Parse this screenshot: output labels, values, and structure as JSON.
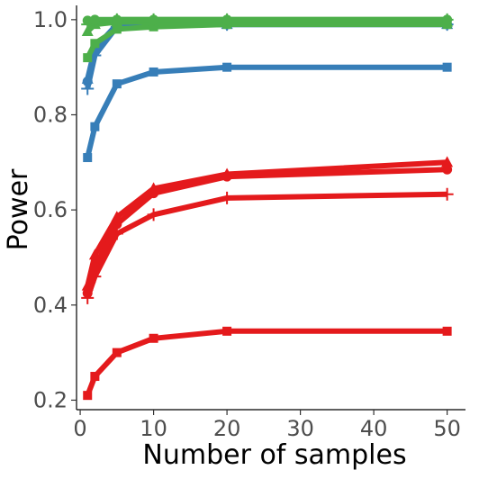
{
  "chart_data": {
    "type": "line",
    "title": "",
    "xlabel": "Number of samples",
    "ylabel": "Power",
    "x": [
      1,
      2,
      5,
      10,
      20,
      50
    ],
    "xlim": [
      -0.5,
      52.5
    ],
    "ylim": [
      0.18,
      1.03
    ],
    "xticks": [
      0,
      10,
      20,
      30,
      40,
      50
    ],
    "yticks": [
      0.2,
      0.4,
      0.6,
      0.8,
      1.0
    ],
    "ytick_labels": [
      "0.2",
      "0.4",
      "0.6",
      "0.8",
      "1.0"
    ],
    "grid": false,
    "legend": "none",
    "colors": {
      "red": "#e41a1c",
      "blue": "#377eb8",
      "green": "#4daf4a"
    },
    "series": [
      {
        "color": "red",
        "marker": "square",
        "values": [
          0.21,
          0.25,
          0.3,
          0.33,
          0.345,
          0.345
        ]
      },
      {
        "color": "red",
        "marker": "plus",
        "values": [
          0.415,
          0.46,
          0.55,
          0.59,
          0.625,
          0.633
        ]
      },
      {
        "color": "red",
        "marker": "circle",
        "values": [
          0.425,
          0.48,
          0.57,
          0.635,
          0.67,
          0.685
        ]
      },
      {
        "color": "red",
        "marker": "triangle",
        "values": [
          0.44,
          0.505,
          0.585,
          0.645,
          0.675,
          0.7
        ]
      },
      {
        "color": "blue",
        "marker": "square",
        "values": [
          0.71,
          0.775,
          0.865,
          0.89,
          0.9,
          0.9
        ]
      },
      {
        "color": "blue",
        "marker": "plus",
        "values": [
          0.855,
          0.925,
          0.985,
          0.99,
          0.99,
          0.99
        ]
      },
      {
        "color": "blue",
        "marker": "circle",
        "values": [
          0.87,
          0.935,
          0.99,
          0.99,
          0.99,
          0.99
        ]
      },
      {
        "color": "blue",
        "marker": "triangle",
        "values": [
          0.875,
          0.94,
          0.99,
          0.99,
          0.99,
          0.99
        ]
      },
      {
        "color": "green",
        "marker": "square",
        "values": [
          0.92,
          0.95,
          0.98,
          0.985,
          0.99,
          0.99
        ]
      },
      {
        "color": "green",
        "marker": "triangle",
        "values": [
          0.975,
          0.99,
          0.995,
          0.995,
          0.995,
          0.995
        ]
      },
      {
        "color": "green",
        "marker": "plus",
        "values": [
          0.99,
          0.995,
          1.0,
          1.0,
          1.0,
          1.0
        ]
      },
      {
        "color": "green",
        "marker": "circle",
        "values": [
          0.998,
          1.0,
          1.0,
          1.0,
          1.0,
          1.0
        ]
      }
    ]
  }
}
